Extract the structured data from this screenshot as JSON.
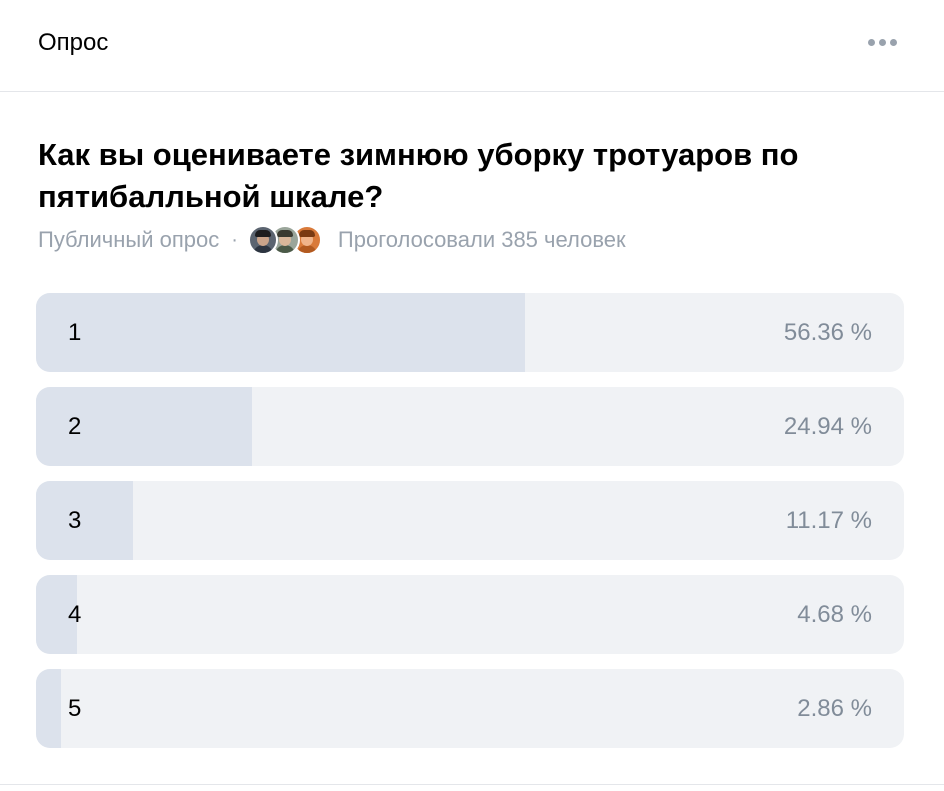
{
  "header": {
    "title": "Опрос",
    "more_icon": "more-horizontal-icon"
  },
  "poll": {
    "question": "Как вы оцениваете зимнюю уборку тротуаров по пятибалльной шкале?",
    "type_label": "Публичный опрос",
    "separator": "·",
    "votes_text": "Проголосовали 385 человек",
    "voter_avatars": [
      {
        "icon": "user-avatar-icon",
        "bg": "#5b6470",
        "skin": "#c9a38a",
        "hair": "#1d1d1f",
        "shirt": "#2c3440"
      },
      {
        "icon": "user-avatar-icon",
        "bg": "#9aa59a",
        "skin": "#d9b79a",
        "hair": "#3a3a30",
        "shirt": "#4b5a48"
      },
      {
        "icon": "user-avatar-icon",
        "bg": "#d97a3a",
        "skin": "#f0b48a",
        "hair": "#7a3a12",
        "shirt": "#b25a20"
      }
    ],
    "options": [
      {
        "label": "1",
        "percent_text": "56.36 %",
        "percent": 56.36
      },
      {
        "label": "2",
        "percent_text": "24.94 %",
        "percent": 24.94
      },
      {
        "label": "3",
        "percent_text": "11.17 %",
        "percent": 11.17
      },
      {
        "label": "4",
        "percent_text": "4.68 %",
        "percent": 4.68
      },
      {
        "label": "5",
        "percent_text": "2.86 %",
        "percent": 2.86
      }
    ],
    "colors": {
      "track": "#f0f2f5",
      "fill": "#dce2ec",
      "percent_text": "#818c99",
      "meta_text": "#99a2ad"
    }
  }
}
